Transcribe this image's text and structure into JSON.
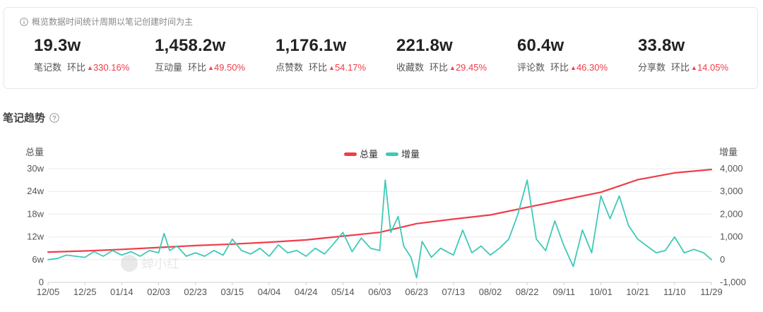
{
  "summary": {
    "note": "概览数据时间统计周期以笔记创建时间为主",
    "compare_label": "环比",
    "metrics": [
      {
        "value": "19.3w",
        "label": "笔记数",
        "change": "330.16%"
      },
      {
        "value": "1,458.2w",
        "label": "互动量",
        "change": "49.50%"
      },
      {
        "value": "1,176.1w",
        "label": "点赞数",
        "change": "54.17%"
      },
      {
        "value": "221.8w",
        "label": "收藏数",
        "change": "29.45%"
      },
      {
        "value": "60.4w",
        "label": "评论数",
        "change": "46.30%"
      },
      {
        "value": "33.8w",
        "label": "分享数",
        "change": "14.05%"
      }
    ]
  },
  "section_title": "笔记趋势",
  "watermark": "蝉小红",
  "colors": {
    "total": "#f03d49",
    "increment": "#3ec9b8",
    "up": "#f03d49"
  },
  "chart_data": {
    "type": "line",
    "left_axis_title": "总量",
    "right_axis_title": "增量",
    "left_ticks": [
      "0",
      "6w",
      "12w",
      "18w",
      "24w",
      "30w"
    ],
    "left_range": [
      0,
      300000
    ],
    "right_ticks": [
      "-1,000",
      "0",
      "1,000",
      "2,000",
      "3,000",
      "4,000"
    ],
    "right_range": [
      -1000,
      4000
    ],
    "x_ticks": [
      "12/05",
      "12/25",
      "01/14",
      "02/03",
      "02/23",
      "03/15",
      "04/04",
      "04/24",
      "05/14",
      "06/03",
      "06/23",
      "07/13",
      "08/02",
      "08/22",
      "09/11",
      "10/01",
      "10/21",
      "11/10",
      "11/29"
    ],
    "grid": true,
    "legend_position": "top-center",
    "series": [
      {
        "name": "总量",
        "axis": "left",
        "points": [
          [
            "12/05",
            80000
          ],
          [
            "12/25",
            83000
          ],
          [
            "01/14",
            87000
          ],
          [
            "02/03",
            92000
          ],
          [
            "02/23",
            97000
          ],
          [
            "03/15",
            101000
          ],
          [
            "04/04",
            106000
          ],
          [
            "04/24",
            112000
          ],
          [
            "05/14",
            122000
          ],
          [
            "06/03",
            132000
          ],
          [
            "06/23",
            155000
          ],
          [
            "07/13",
            167000
          ],
          [
            "08/02",
            178000
          ],
          [
            "08/22",
            198000
          ],
          [
            "09/11",
            218000
          ],
          [
            "10/01",
            238000
          ],
          [
            "10/21",
            271000
          ],
          [
            "11/10",
            289000
          ],
          [
            "11/29",
            298000
          ]
        ]
      },
      {
        "name": "增量",
        "axis": "right",
        "points": [
          [
            "12/05",
            0
          ],
          [
            "12/10",
            50
          ],
          [
            "12/15",
            200
          ],
          [
            "12/20",
            150
          ],
          [
            "12/25",
            100
          ],
          [
            "12/30",
            350
          ],
          [
            "01/04",
            150
          ],
          [
            "01/09",
            400
          ],
          [
            "01/14",
            200
          ],
          [
            "01/19",
            350
          ],
          [
            "01/24",
            150
          ],
          [
            "01/29",
            400
          ],
          [
            "02/03",
            300
          ],
          [
            "02/06",
            1150
          ],
          [
            "02/09",
            400
          ],
          [
            "02/13",
            600
          ],
          [
            "02/18",
            150
          ],
          [
            "02/23",
            300
          ],
          [
            "02/28",
            150
          ],
          [
            "03/05",
            400
          ],
          [
            "03/10",
            200
          ],
          [
            "03/15",
            900
          ],
          [
            "03/20",
            400
          ],
          [
            "03/25",
            250
          ],
          [
            "03/30",
            500
          ],
          [
            "04/04",
            150
          ],
          [
            "04/09",
            650
          ],
          [
            "04/14",
            300
          ],
          [
            "04/19",
            400
          ],
          [
            "04/24",
            150
          ],
          [
            "04/29",
            500
          ],
          [
            "05/04",
            250
          ],
          [
            "05/09",
            700
          ],
          [
            "05/14",
            1200
          ],
          [
            "05/19",
            350
          ],
          [
            "05/24",
            950
          ],
          [
            "05/29",
            500
          ],
          [
            "06/03",
            400
          ],
          [
            "06/06",
            3500
          ],
          [
            "06/09",
            1200
          ],
          [
            "06/13",
            1900
          ],
          [
            "06/16",
            600
          ],
          [
            "06/20",
            100
          ],
          [
            "06/23",
            -800
          ],
          [
            "06/26",
            800
          ],
          [
            "07/01",
            100
          ],
          [
            "07/06",
            500
          ],
          [
            "07/13",
            200
          ],
          [
            "07/18",
            1300
          ],
          [
            "07/23",
            300
          ],
          [
            "07/28",
            600
          ],
          [
            "08/02",
            200
          ],
          [
            "08/07",
            500
          ],
          [
            "08/12",
            900
          ],
          [
            "08/17",
            2000
          ],
          [
            "08/22",
            3500
          ],
          [
            "08/27",
            900
          ],
          [
            "09/01",
            400
          ],
          [
            "09/06",
            1700
          ],
          [
            "09/11",
            600
          ],
          [
            "09/16",
            -300
          ],
          [
            "09/21",
            1300
          ],
          [
            "09/26",
            300
          ],
          [
            "10/01",
            2800
          ],
          [
            "10/06",
            1800
          ],
          [
            "10/11",
            2800
          ],
          [
            "10/16",
            1500
          ],
          [
            "10/21",
            900
          ],
          [
            "10/26",
            600
          ],
          [
            "10/31",
            300
          ],
          [
            "11/05",
            400
          ],
          [
            "11/10",
            1000
          ],
          [
            "11/15",
            300
          ],
          [
            "11/20",
            450
          ],
          [
            "11/25",
            300
          ],
          [
            "11/29",
            0
          ]
        ]
      }
    ]
  }
}
